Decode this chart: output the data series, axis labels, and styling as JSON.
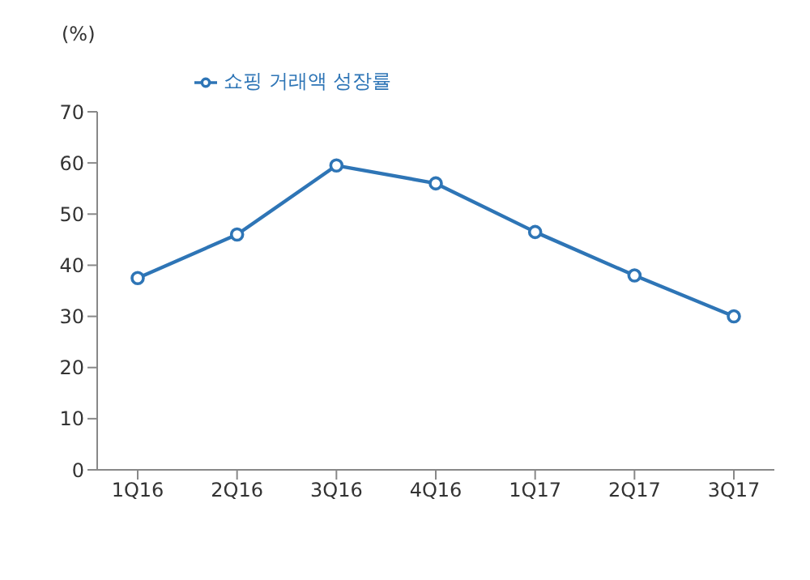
{
  "chart_data": {
    "type": "line",
    "ylabel": "(%)",
    "categories": [
      "1Q16",
      "2Q16",
      "3Q16",
      "4Q16",
      "1Q17",
      "2Q17",
      "3Q17"
    ],
    "series": [
      {
        "name": "쇼핑 거래액 성장률",
        "color": "#2e75b6",
        "values": [
          37.5,
          46,
          59.5,
          56,
          46.5,
          38,
          30
        ]
      }
    ],
    "ylim": [
      0,
      70
    ],
    "yticks": [
      0,
      10,
      20,
      30,
      40,
      50,
      60,
      70
    ],
    "grid": false,
    "legend": "top left",
    "marker": "circle",
    "line_style": "solid"
  }
}
